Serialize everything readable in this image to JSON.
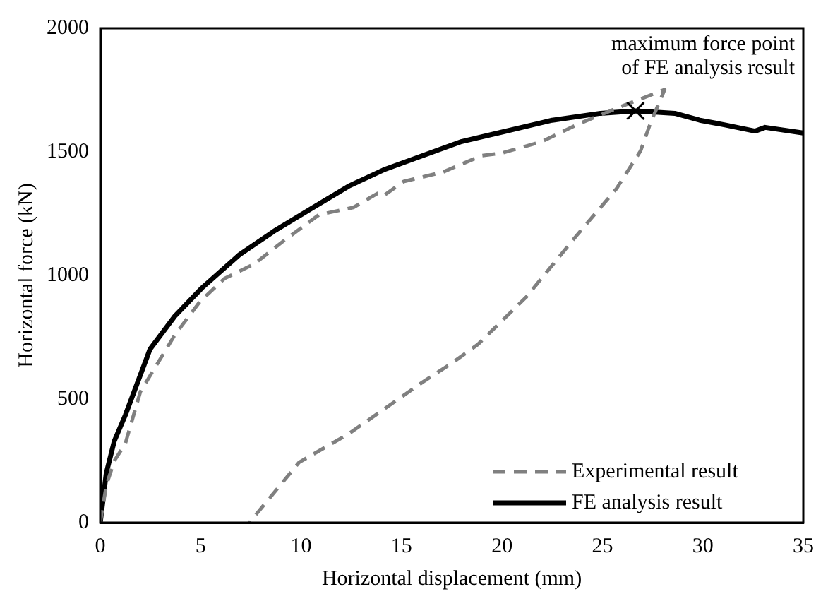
{
  "chart_data": {
    "type": "line",
    "xlabel": "Horizontal displacement (mm)",
    "ylabel": "Horizontal force (kN)",
    "xlim": [
      0,
      35
    ],
    "ylim": [
      0,
      2000
    ],
    "xticks": [
      0,
      5,
      10,
      15,
      20,
      25,
      30,
      35
    ],
    "yticks": [
      0,
      500,
      1000,
      1500,
      2000
    ],
    "grid": false,
    "legend": "bottom right",
    "marker": "none",
    "series": [
      {
        "name": "Experimental result",
        "color": "#808080",
        "line_style": "dashed",
        "x": [
          0,
          0.3,
          0.7,
          1.25,
          2.0,
          3.72,
          4.95,
          6.19,
          7.66,
          9.15,
          10.9,
          12.6,
          13.8,
          14.1,
          15.1,
          17.05,
          19.0,
          20,
          22,
          23.7,
          25.7,
          28.1,
          27.4,
          26.9,
          25.7,
          23.7,
          21.2,
          18.8,
          17.5,
          16.06,
          12.36,
          9.9,
          7.42
        ],
        "values": [
          0,
          150,
          250,
          320,
          530,
          760,
          893,
          988,
          1046,
          1141,
          1246,
          1275,
          1332,
          1322,
          1380,
          1418,
          1485,
          1495,
          1542,
          1609,
          1676,
          1752,
          1618,
          1504,
          1351,
          1160,
          912,
          721,
          645,
          569,
          359,
          244,
          0
        ]
      },
      {
        "name": "FE analysis result",
        "color": "#000000",
        "line_style": "solid",
        "x": [
          0,
          0.3,
          0.7,
          1.25,
          2.48,
          3.72,
          5.07,
          6.93,
          8.65,
          10.6,
          12.36,
          14.1,
          16.06,
          18.0,
          20,
          22.5,
          24.9,
          26.65,
          28.6,
          29.85,
          31.1,
          32.6,
          33.1,
          35
        ],
        "values": [
          0,
          200,
          330,
          435,
          702,
          836,
          950,
          1084,
          1179,
          1275,
          1361,
          1427,
          1485,
          1542,
          1580,
          1628,
          1656,
          1666,
          1656,
          1628,
          1609,
          1584,
          1599,
          1576
        ]
      }
    ],
    "annotations": [
      {
        "text": "maximum force point\nof FE analysis result",
        "x": 26.65,
        "y": 1666
      }
    ]
  }
}
